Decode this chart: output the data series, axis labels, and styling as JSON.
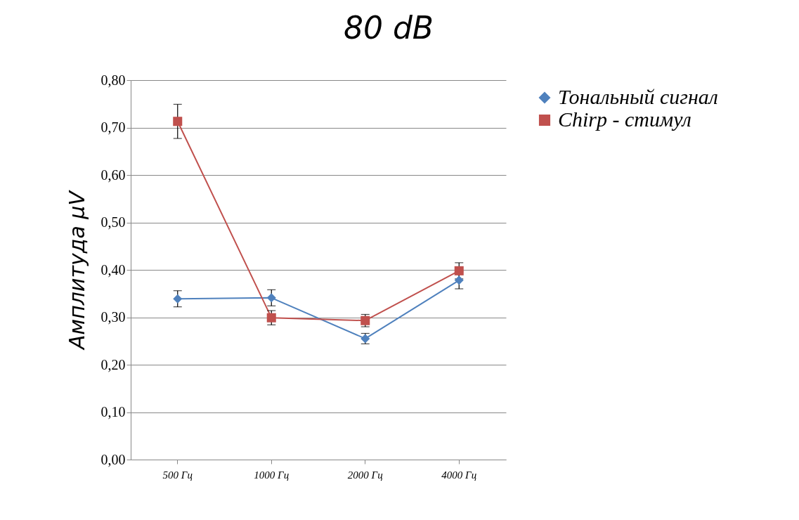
{
  "chart_data": {
    "type": "line",
    "title": "80 dB",
    "ylabel": "Амплитуда µV",
    "categories": [
      "500 Гц",
      "1000 Гц",
      "2000 Гц",
      "4000 Гц"
    ],
    "series": [
      {
        "name": "Тональный сигнал",
        "color": "#4f81bd",
        "marker": "diamond",
        "values": [
          0.339,
          0.341,
          0.255,
          0.378
        ],
        "errors": [
          0.017,
          0.017,
          0.011,
          0.018
        ]
      },
      {
        "name": "Chirp - стимул",
        "color": "#c0504d",
        "marker": "square",
        "values": [
          0.713,
          0.299,
          0.293,
          0.398
        ],
        "errors": [
          0.036,
          0.015,
          0.013,
          0.017
        ]
      }
    ],
    "ylim": [
      0,
      0.8
    ],
    "yticks": [
      {
        "value": 0,
        "label": "0,00"
      },
      {
        "value": 0.1,
        "label": "0,10"
      },
      {
        "value": 0.2,
        "label": "0,20"
      },
      {
        "value": 0.3,
        "label": "0,30"
      },
      {
        "value": 0.4,
        "label": "0,40"
      },
      {
        "value": 0.5,
        "label": "0,50"
      },
      {
        "value": 0.6,
        "label": "0,60"
      },
      {
        "value": 0.7,
        "label": "0,70"
      },
      {
        "value": 0.8,
        "label": "0,80"
      }
    ],
    "grid": "y",
    "legend": "right",
    "line_style": "solid"
  }
}
